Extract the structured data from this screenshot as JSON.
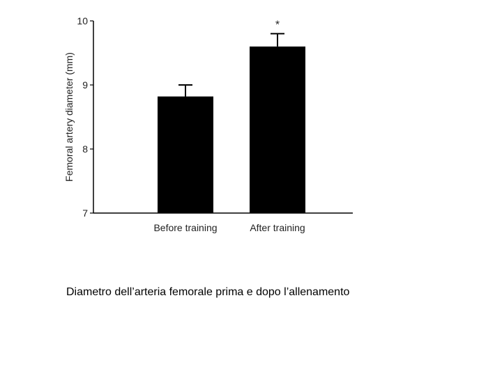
{
  "chart_data": {
    "type": "bar",
    "ylabel": "Femoral artery diameter (mm)",
    "ylim": [
      7,
      10
    ],
    "yticks": [
      "7",
      "8",
      "9",
      "10"
    ],
    "categories": [
      "Before training",
      "After training"
    ],
    "values": [
      8.82,
      9.6
    ],
    "errors": [
      0.18,
      0.2
    ],
    "bar_color": "#000000",
    "annotations": [
      {
        "category": "After training",
        "text": "*"
      }
    ],
    "grid": false
  },
  "caption": "Diametro dell’arteria femorale prima e dopo l’allenamento"
}
